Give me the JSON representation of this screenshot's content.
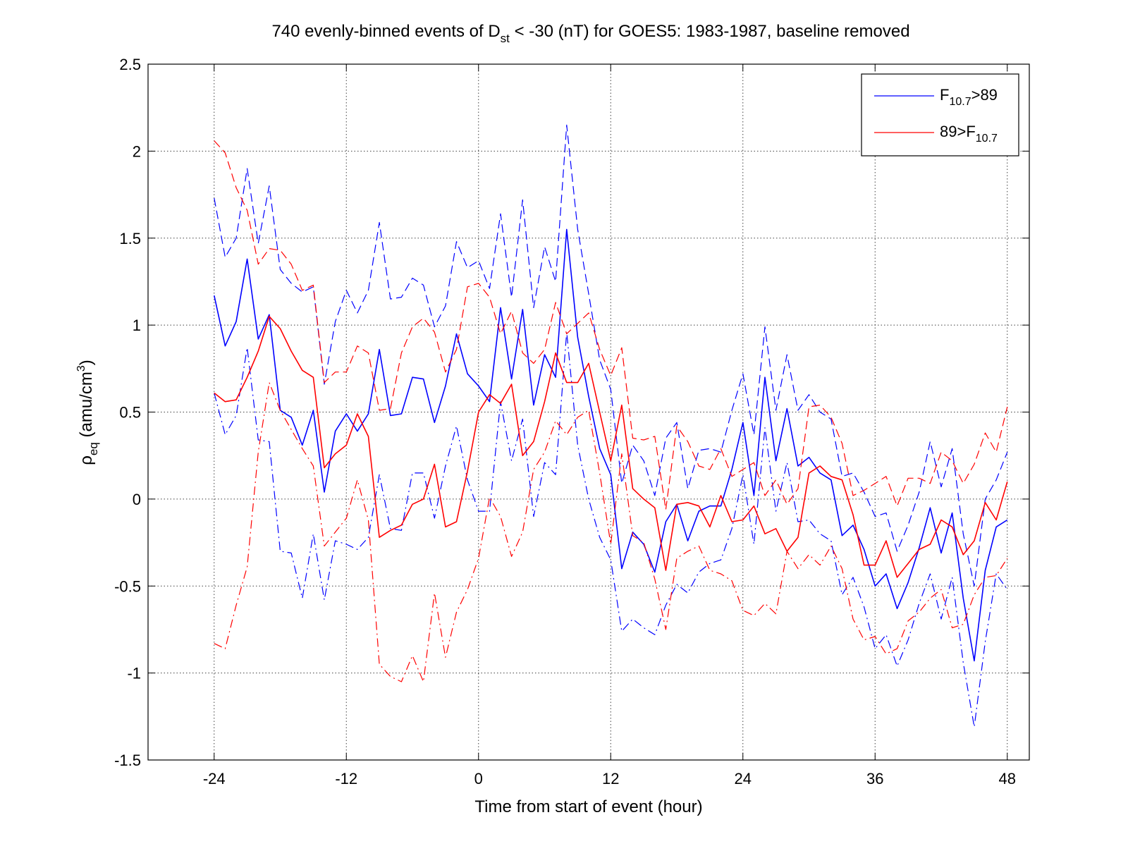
{
  "chart_data": {
    "type": "line",
    "title": {
      "prefix": "740 evenly-binned events of D",
      "prefix_subscript": "st",
      "suffix": " < -30 (nT) for GOES5: 1983-1987, baseline removed"
    },
    "xlabel": "Time from start of event (hour)",
    "ylabel": {
      "main": "ρ",
      "subscript": "eq",
      "units_prefix": " (amu/cm",
      "units_superscript": "3",
      "units_suffix": ")"
    },
    "xlim": [
      -30,
      50
    ],
    "ylim": [
      -1.5,
      2.5
    ],
    "x_ticks": [
      -24,
      -12,
      0,
      12,
      24,
      36,
      48
    ],
    "x_tick_labels": [
      "-24",
      "-12",
      "0",
      "12",
      "24",
      "36",
      "48"
    ],
    "y_ticks": [
      -1.5,
      -1,
      -0.5,
      0,
      0.5,
      1,
      1.5,
      2,
      2.5
    ],
    "y_tick_labels": [
      "-1.5",
      "-1",
      "-0.5",
      "0",
      "0.5",
      "1",
      "1.5",
      "2",
      "2.5"
    ],
    "grid": true,
    "legend_position": "top-right",
    "legend": [
      {
        "series": "blue",
        "parts": [
          {
            "text": "F"
          },
          {
            "sub": "10.7"
          },
          {
            "text": ">89"
          }
        ]
      },
      {
        "series": "red",
        "parts": [
          {
            "text": "89>F"
          },
          {
            "sub": "10.7"
          }
        ]
      }
    ],
    "x_bins_hours": {
      "start": -24,
      "step": 1,
      "count": 73
    },
    "series": [
      {
        "id": "blue",
        "color": "#0000ff",
        "mean": [
          1.17,
          0.88,
          1.02,
          1.38,
          0.92,
          1.06,
          0.51,
          0.47,
          0.31,
          0.51,
          0.04,
          0.39,
          0.49,
          0.39,
          0.49,
          0.86,
          0.48,
          0.49,
          0.7,
          0.69,
          0.44,
          0.65,
          0.95,
          0.72,
          0.65,
          0.56,
          1.1,
          0.69,
          1.09,
          0.54,
          0.83,
          0.7,
          1.55,
          0.93,
          0.59,
          0.29,
          0.14,
          -0.4,
          -0.19,
          -0.26,
          -0.42,
          -0.13,
          -0.03,
          -0.24,
          -0.07,
          -0.04,
          -0.04,
          0.17,
          0.44,
          0.02,
          0.7,
          0.22,
          0.52,
          0.19,
          0.24,
          0.15,
          0.11,
          -0.21,
          -0.15,
          -0.29,
          -0.5,
          -0.43,
          -0.63,
          -0.48,
          -0.28,
          -0.05,
          -0.31,
          -0.08,
          -0.57,
          -0.93,
          -0.41,
          -0.16,
          -0.12
        ],
        "upper": [
          1.73,
          1.39,
          1.5,
          1.9,
          1.47,
          1.8,
          1.32,
          1.24,
          1.19,
          1.22,
          0.66,
          1.02,
          1.2,
          1.07,
          1.2,
          1.59,
          1.15,
          1.16,
          1.27,
          1.23,
          0.99,
          1.11,
          1.48,
          1.33,
          1.37,
          1.21,
          1.64,
          1.16,
          1.72,
          1.1,
          1.45,
          1.25,
          2.15,
          1.55,
          1.18,
          0.8,
          0.63,
          0.09,
          0.31,
          0.22,
          0.02,
          0.35,
          0.44,
          0.06,
          0.28,
          0.29,
          0.27,
          0.51,
          0.72,
          0.37,
          0.99,
          0.51,
          0.83,
          0.51,
          0.6,
          0.5,
          0.46,
          0.13,
          0.15,
          0.04,
          -0.1,
          -0.08,
          -0.3,
          -0.15,
          0.04,
          0.33,
          0.07,
          0.29,
          -0.2,
          -0.5,
          0.0,
          0.11,
          0.27
        ],
        "lower": [
          0.61,
          0.37,
          0.48,
          0.87,
          0.34,
          0.33,
          -0.3,
          -0.31,
          -0.57,
          -0.2,
          -0.58,
          -0.24,
          -0.26,
          -0.29,
          -0.22,
          0.14,
          -0.17,
          -0.18,
          0.15,
          0.15,
          -0.11,
          0.19,
          0.42,
          0.11,
          -0.07,
          -0.07,
          0.56,
          0.22,
          0.46,
          -0.1,
          0.21,
          0.14,
          0.96,
          0.31,
          0.0,
          -0.22,
          -0.35,
          -0.76,
          -0.69,
          -0.74,
          -0.78,
          -0.61,
          -0.49,
          -0.54,
          -0.42,
          -0.37,
          -0.35,
          -0.17,
          0.14,
          -0.26,
          0.41,
          -0.07,
          0.21,
          -0.13,
          -0.12,
          -0.2,
          -0.24,
          -0.55,
          -0.45,
          -0.62,
          -0.86,
          -0.78,
          -0.96,
          -0.81,
          -0.6,
          -0.43,
          -0.69,
          -0.45,
          -0.94,
          -1.31,
          -0.82,
          -0.43,
          -0.52
        ]
      },
      {
        "id": "red",
        "color": "#ff0000",
        "mean": [
          0.61,
          0.56,
          0.57,
          0.7,
          0.85,
          1.05,
          0.98,
          0.85,
          0.74,
          0.7,
          0.18,
          0.26,
          0.31,
          0.49,
          0.36,
          -0.22,
          -0.18,
          -0.15,
          -0.03,
          0.0,
          0.2,
          -0.16,
          -0.13,
          0.16,
          0.5,
          0.6,
          0.55,
          0.66,
          0.25,
          0.33,
          0.56,
          0.84,
          0.67,
          0.67,
          0.78,
          0.5,
          0.22,
          0.54,
          0.06,
          0.0,
          -0.05,
          -0.41,
          -0.03,
          -0.02,
          -0.04,
          -0.16,
          0.02,
          -0.13,
          -0.12,
          -0.04,
          -0.2,
          -0.17,
          -0.3,
          -0.22,
          0.15,
          0.19,
          0.13,
          0.11,
          -0.09,
          -0.38,
          -0.38,
          -0.24,
          -0.45,
          -0.37,
          -0.29,
          -0.26,
          -0.12,
          -0.16,
          -0.32,
          -0.24,
          -0.02,
          -0.12,
          0.1
        ],
        "upper": [
          2.06,
          1.99,
          1.79,
          1.66,
          1.35,
          1.44,
          1.43,
          1.35,
          1.2,
          1.23,
          0.67,
          0.73,
          0.73,
          0.88,
          0.84,
          0.51,
          0.52,
          0.84,
          0.99,
          1.04,
          0.96,
          0.73,
          0.86,
          1.22,
          1.24,
          1.16,
          0.95,
          1.08,
          0.84,
          0.78,
          0.86,
          1.13,
          0.95,
          1.01,
          1.07,
          0.86,
          0.71,
          0.87,
          0.35,
          0.34,
          0.36,
          -0.06,
          0.42,
          0.33,
          0.19,
          0.17,
          0.29,
          0.13,
          0.17,
          0.21,
          0.02,
          0.11,
          -0.03,
          0.06,
          0.53,
          0.54,
          0.47,
          0.32,
          0.02,
          0.05,
          0.09,
          0.13,
          -0.04,
          0.12,
          0.12,
          0.09,
          0.27,
          0.22,
          0.09,
          0.2,
          0.38,
          0.27,
          0.53
        ],
        "lower": [
          -0.83,
          -0.86,
          -0.61,
          -0.39,
          0.27,
          0.67,
          0.51,
          0.4,
          0.29,
          0.19,
          -0.27,
          -0.19,
          -0.11,
          0.11,
          -0.12,
          -0.95,
          -1.02,
          -1.05,
          -0.9,
          -1.05,
          -0.54,
          -0.91,
          -0.65,
          -0.52,
          -0.34,
          0.01,
          -0.1,
          -0.33,
          -0.19,
          0.17,
          0.27,
          0.45,
          0.37,
          0.47,
          0.51,
          0.15,
          -0.26,
          0.26,
          -0.21,
          -0.25,
          -0.46,
          -0.75,
          -0.34,
          -0.3,
          -0.27,
          -0.41,
          -0.43,
          -0.47,
          -0.64,
          -0.67,
          -0.6,
          -0.66,
          -0.3,
          -0.4,
          -0.32,
          -0.38,
          -0.27,
          -0.4,
          -0.69,
          -0.81,
          -0.79,
          -0.89,
          -0.86,
          -0.7,
          -0.65,
          -0.57,
          -0.52,
          -0.74,
          -0.72,
          -0.55,
          -0.45,
          -0.44,
          -0.34
        ]
      }
    ]
  }
}
